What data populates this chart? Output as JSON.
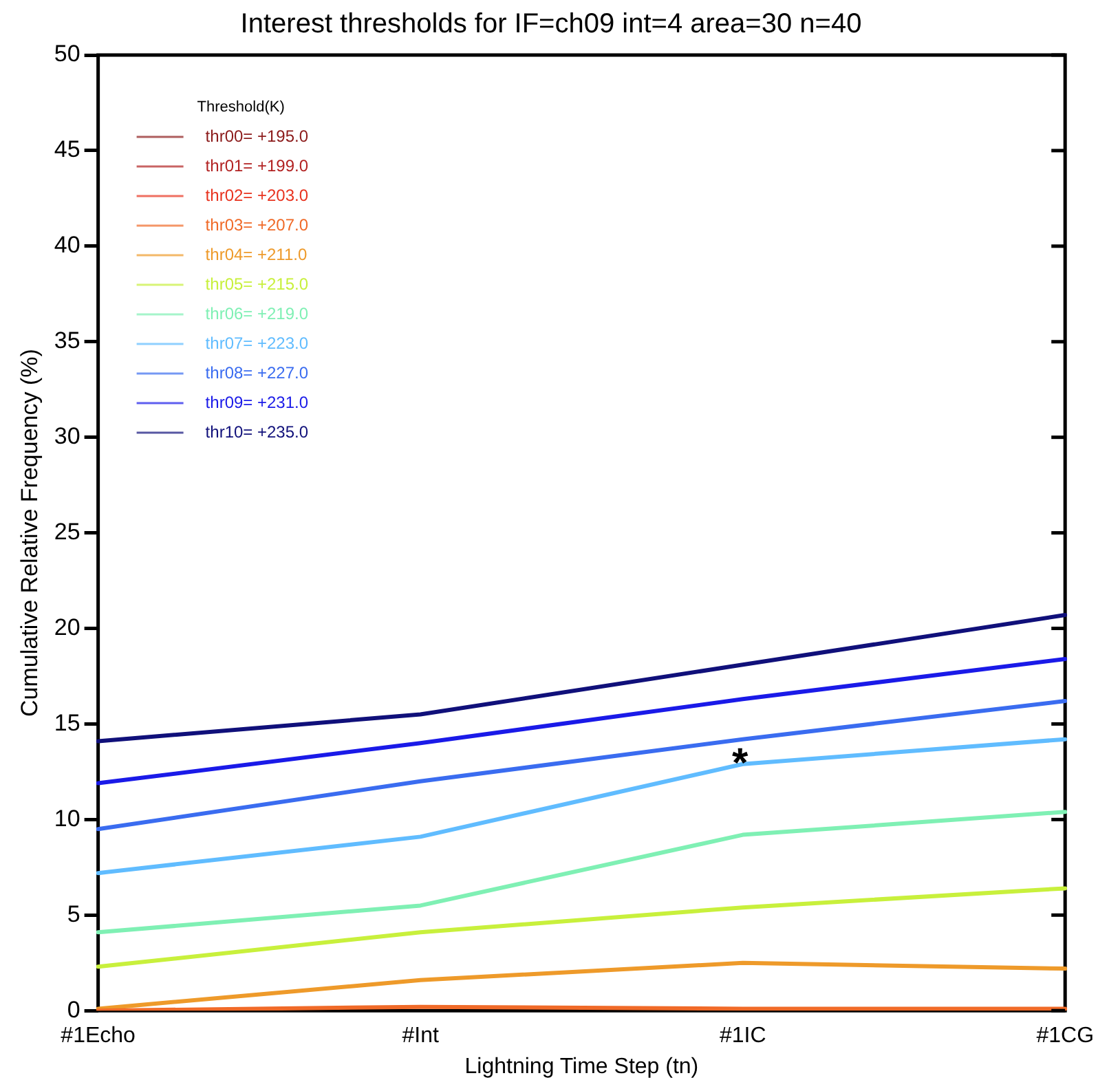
{
  "chart_data": {
    "type": "line",
    "title": "Interest thresholds for IF=ch09 int=4 area=30 n=40",
    "xlabel": "Lightning Time Step (tn)",
    "ylabel": "Cumulative Relative Frequency (%)",
    "legend_title": "Threshold(K)",
    "legend": "top left",
    "grid": false,
    "marker": "none",
    "line_style": "solid",
    "categories": [
      "#1Echo",
      "#Int",
      "#1IC",
      "#1CG"
    ],
    "ylim": [
      0,
      50
    ],
    "yticks": [
      0,
      5,
      10,
      15,
      20,
      25,
      30,
      35,
      40,
      45,
      50
    ],
    "series": [
      {
        "name": "thr00= +195.0",
        "color": "#8b1a1a",
        "values": [
          null,
          null,
          null,
          null
        ]
      },
      {
        "name": "thr01= +199.0",
        "color": "#b22222",
        "values": [
          null,
          null,
          null,
          null
        ]
      },
      {
        "name": "thr02= +203.0",
        "color": "#e8321e",
        "values": [
          null,
          null,
          null,
          null
        ]
      },
      {
        "name": "thr03= +207.0",
        "color": "#f06a28",
        "values": [
          0,
          0.2,
          0.1,
          0.1
        ]
      },
      {
        "name": "thr04= +211.0",
        "color": "#ee9a2a",
        "values": [
          0.1,
          1.6,
          2.5,
          2.2
        ]
      },
      {
        "name": "thr05= +215.0",
        "color": "#c8f03c",
        "values": [
          2.3,
          4.1,
          5.4,
          6.4
        ]
      },
      {
        "name": "thr06= +219.0",
        "color": "#7ff0b4",
        "values": [
          4.1,
          5.5,
          9.2,
          10.4
        ]
      },
      {
        "name": "thr07= +223.0",
        "color": "#60bcff",
        "values": [
          7.2,
          9.1,
          12.9,
          14.2
        ]
      },
      {
        "name": "thr08= +227.0",
        "color": "#3a6cf0",
        "values": [
          9.5,
          12.0,
          14.2,
          16.2
        ]
      },
      {
        "name": "thr09= +231.0",
        "color": "#1a1ae8",
        "values": [
          11.9,
          14.0,
          16.3,
          18.4
        ]
      },
      {
        "name": "thr10= +235.0",
        "color": "#10107a",
        "values": [
          14.1,
          15.5,
          18.1,
          20.7
        ]
      }
    ],
    "annotations": [
      {
        "text": "*",
        "x": "#1IC",
        "y": 12.9
      }
    ]
  }
}
